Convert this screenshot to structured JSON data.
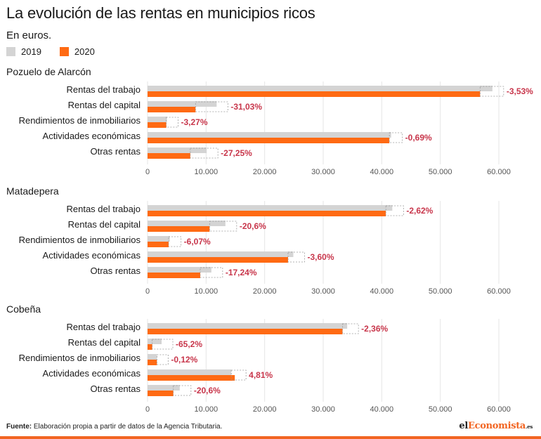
{
  "title": "La evolución de las rentas en municipios ricos",
  "subtitle": "En euros.",
  "colors": {
    "y2019": "#d4d4d4",
    "y2020": "#ff6a13",
    "change": "#c8364b",
    "grid": "#e6e6e6"
  },
  "footer": {
    "label": "Fuente:",
    "text": " Elaboración propia a partir de datos de la Agencia Tributaria."
  },
  "logo": {
    "pre": "el",
    "accent": "Economista",
    "suffix": ".es"
  },
  "chart_data": [
    {
      "type": "bar",
      "title": "Pozuelo de Alarcón",
      "categories": [
        "Rentas del trabajo",
        "Rentas del capital",
        "Rendimientos de inmobiliarios",
        "Actividades económicas",
        "Otras rentas"
      ],
      "series": [
        {
          "name": "2019",
          "values": [
            58900,
            11800,
            3300,
            41600,
            10100
          ]
        },
        {
          "name": "2020",
          "values": [
            56800,
            8200,
            3200,
            41300,
            7300
          ]
        }
      ],
      "changes": [
        "-3,53%",
        "-31,03%",
        "-3,27%",
        "-0,69%",
        "-27,25%"
      ],
      "xlim": [
        0,
        60000
      ],
      "ticks": [
        "0",
        "10.000",
        "20.000",
        "30.000",
        "40.000",
        "50.000",
        "60.000"
      ]
    },
    {
      "type": "bar",
      "title": "Matadepera",
      "categories": [
        "Rentas del trabajo",
        "Rentas del capital",
        "Rendimientos de inmobiliarios",
        "Actividades económicas",
        "Otras rentas"
      ],
      "series": [
        {
          "name": "2019",
          "values": [
            41800,
            13300,
            3800,
            24900,
            10900
          ]
        },
        {
          "name": "2020",
          "values": [
            40700,
            10600,
            3600,
            24000,
            9000
          ]
        }
      ],
      "changes": [
        "-2,62%",
        "-20,6%",
        "-6,07%",
        "-3,60%",
        "-17,24%"
      ],
      "xlim": [
        0,
        60000
      ],
      "ticks": [
        "0",
        "10.000",
        "20.000",
        "30.000",
        "40.000",
        "50.000",
        "60.000"
      ]
    },
    {
      "type": "bar",
      "title": "Cobeña",
      "categories": [
        "Rentas del trabajo",
        "Rentas del capital",
        "Rendimientos de inmobiliarios",
        "Actividades económicas",
        "Otras rentas"
      ],
      "series": [
        {
          "name": "2019",
          "values": [
            34100,
            2400,
            1600,
            14300,
            5500
          ]
        },
        {
          "name": "2020",
          "values": [
            33300,
            800,
            1600,
            14900,
            4400
          ]
        }
      ],
      "changes": [
        "-2,36%",
        "-65,2%",
        "-0,12%",
        "4,81%",
        "-20,6%"
      ],
      "xlim": [
        0,
        60000
      ],
      "ticks": [
        "0",
        "10.000",
        "20.000",
        "30.000",
        "40.000",
        "50.000",
        "60.000"
      ]
    }
  ]
}
